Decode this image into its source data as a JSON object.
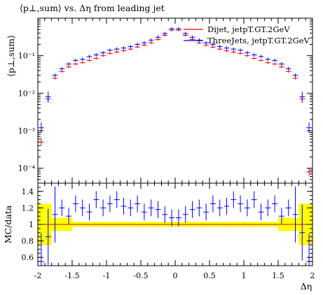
{
  "title": "⟨p⊥,sum⟩ vs. Δη from leading jet",
  "chart_data": [
    {
      "type": "scatter",
      "panel": "main",
      "title": "⟨p⊥,sum⟩ vs. Δη from leading jet",
      "ylabel": "⟨p⊥,sum⟩",
      "xlim": [
        -2,
        2
      ],
      "ylim": [
        4e-05,
        1
      ],
      "yscale": "log",
      "ytick_labels": [
        "10⁻⁴",
        "10⁻³",
        "10⁻²",
        "10⁻¹"
      ],
      "legend_position": "top-right",
      "x": [
        -1.95,
        -1.85,
        -1.75,
        -1.65,
        -1.55,
        -1.45,
        -1.35,
        -1.25,
        -1.15,
        -1.05,
        -0.95,
        -0.85,
        -0.75,
        -0.65,
        -0.55,
        -0.45,
        -0.35,
        -0.25,
        -0.15,
        -0.05,
        0.05,
        0.15,
        0.25,
        0.35,
        0.45,
        0.55,
        0.65,
        0.75,
        0.85,
        0.95,
        1.05,
        1.15,
        1.25,
        1.35,
        1.45,
        1.55,
        1.65,
        1.75,
        1.85,
        1.95
      ],
      "series": [
        {
          "name": "Dijet, jetpT.GT.2GeV",
          "color": "#ff0000",
          "values": [
            0.0005,
            0.007,
            0.025,
            0.038,
            0.05,
            0.06,
            0.065,
            0.075,
            0.085,
            0.1,
            0.115,
            0.125,
            0.135,
            0.15,
            0.17,
            0.19,
            0.22,
            0.27,
            0.35,
            0.48,
            0.48,
            0.35,
            0.27,
            0.22,
            0.19,
            0.17,
            0.15,
            0.135,
            0.125,
            0.115,
            0.1,
            0.085,
            0.075,
            0.065,
            0.06,
            0.05,
            0.038,
            0.025,
            0.007,
            8e-05
          ]
        },
        {
          "name": "ThreeJets, jetpT.GT.2GeV",
          "color": "#0000ff",
          "values": [
            0.0012,
            0.008,
            0.03,
            0.045,
            0.06,
            0.075,
            0.08,
            0.095,
            0.105,
            0.12,
            0.14,
            0.15,
            0.16,
            0.175,
            0.2,
            0.22,
            0.26,
            0.31,
            0.39,
            0.52,
            0.52,
            0.39,
            0.31,
            0.26,
            0.22,
            0.2,
            0.175,
            0.16,
            0.15,
            0.14,
            0.12,
            0.105,
            0.095,
            0.08,
            0.075,
            0.06,
            0.045,
            0.03,
            0.008,
            0.0012
          ]
        }
      ]
    },
    {
      "type": "scatter",
      "panel": "ratio",
      "ylabel": "MC/data",
      "xlabel": "Δη",
      "xlim": [
        -2,
        2
      ],
      "ylim": [
        0.5,
        1.5
      ],
      "x_ticks": [
        "-2",
        "-1.5",
        "-1",
        "-0.5",
        "0",
        "0.5",
        "1",
        "1.5",
        "2"
      ],
      "y_ticks": [
        "0.6",
        "0.8",
        "1",
        "1.2",
        "1.4"
      ],
      "band_color": "#ffff00",
      "reference_line": 1,
      "x": [
        -1.95,
        -1.85,
        -1.75,
        -1.65,
        -1.55,
        -1.45,
        -1.35,
        -1.25,
        -1.15,
        -1.05,
        -0.95,
        -0.85,
        -0.75,
        -0.65,
        -0.55,
        -0.45,
        -0.35,
        -0.25,
        -0.15,
        -0.05,
        0.05,
        0.15,
        0.25,
        0.35,
        0.45,
        0.55,
        0.65,
        0.75,
        0.85,
        0.95,
        1.05,
        1.15,
        1.25,
        1.35,
        1.45,
        1.55,
        1.65,
        1.75,
        1.85,
        1.95
      ],
      "series": [
        {
          "name": "Dijet, jetpT.GT.2GeV",
          "color": "#ff0000",
          "values": [
            1.0,
            1.0,
            1.0,
            1.0,
            1.0,
            1.0,
            1.0,
            1.0,
            1.0,
            1.0,
            1.0,
            1.0,
            1.0,
            1.0,
            1.0,
            1.0,
            1.0,
            1.0,
            1.0,
            1.0,
            1.0,
            1.0,
            1.0,
            1.0,
            1.0,
            1.0,
            1.0,
            1.0,
            1.0,
            1.0,
            1.0,
            1.0,
            1.0,
            1.0,
            1.0,
            1.0,
            1.0,
            1.0,
            1.0,
            1.0
          ]
        },
        {
          "name": "ThreeJets, jetpT.GT.2GeV",
          "color": "#0000ff",
          "values": [
            0.55,
            0.85,
            1.12,
            1.2,
            1.1,
            1.25,
            1.2,
            1.15,
            1.3,
            1.2,
            1.25,
            1.3,
            1.22,
            1.2,
            1.25,
            1.15,
            1.2,
            1.18,
            1.12,
            1.08,
            1.08,
            1.12,
            1.18,
            1.2,
            1.15,
            1.25,
            1.2,
            1.22,
            1.3,
            1.25,
            1.2,
            1.3,
            1.15,
            1.2,
            1.25,
            1.1,
            1.2,
            1.12,
            0.9,
            0.55
          ]
        }
      ]
    }
  ]
}
